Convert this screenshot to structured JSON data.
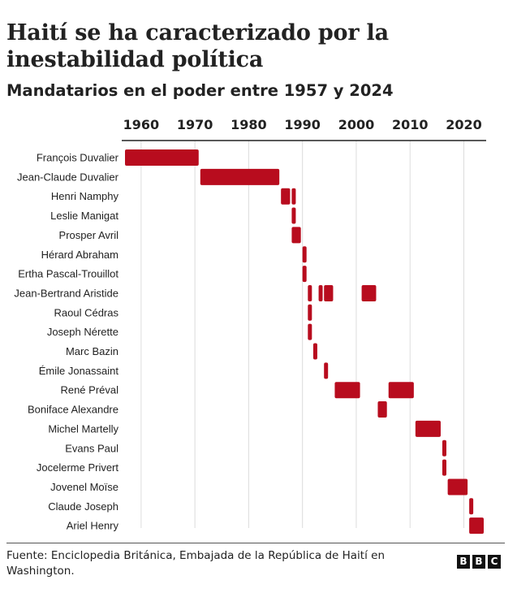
{
  "title": "Haití se ha caracterizado por la inestabilidad política",
  "subtitle": "Mandatarios en el poder entre 1957 y 2024",
  "source": "Fuente: Enciclopedia Británica, Embajada de la República de Haití en Washington.",
  "logo": [
    "B",
    "B",
    "C"
  ],
  "colors": {
    "bar": "#b80c1e",
    "grid": "#dcdcdc",
    "text": "#222222",
    "axis": "#222222"
  },
  "chart_data": {
    "type": "timeline",
    "title": "Haití se ha caracterizado por la inestabilidad política",
    "subtitle": "Mandatarios en el poder entre 1957 y 2024",
    "xlabel": "",
    "ylabel": "",
    "xlim": [
      1957,
      2024
    ],
    "xticks": [
      "1960",
      "1970",
      "1980",
      "1990",
      "2000",
      "2010",
      "2020"
    ],
    "leaders": [
      {
        "name": "François Duvalier",
        "terms": [
          [
            1957,
            1971
          ]
        ]
      },
      {
        "name": "Jean-Claude Duvalier",
        "terms": [
          [
            1971,
            1986
          ]
        ]
      },
      {
        "name": "Henri Namphy",
        "terms": [
          [
            1986,
            1988
          ],
          [
            1988,
            1988.8
          ]
        ]
      },
      {
        "name": "Leslie Manigat",
        "terms": [
          [
            1988,
            1988.6
          ]
        ]
      },
      {
        "name": "Prosper Avril",
        "terms": [
          [
            1988,
            1990
          ]
        ]
      },
      {
        "name": "Hérard Abraham",
        "terms": [
          [
            1990,
            1990.5
          ]
        ]
      },
      {
        "name": "Ertha Pascal-Trouillot",
        "terms": [
          [
            1990,
            1991
          ]
        ]
      },
      {
        "name": "Jean-Bertrand Aristide",
        "terms": [
          [
            1991,
            1991.8
          ],
          [
            1993,
            1994
          ],
          [
            1994,
            1996
          ],
          [
            2001,
            2004
          ]
        ]
      },
      {
        "name": "Raoul Cédras",
        "terms": [
          [
            1991,
            1991.9
          ]
        ]
      },
      {
        "name": "Joseph Nérette",
        "terms": [
          [
            1991,
            1992
          ]
        ]
      },
      {
        "name": "Marc Bazin",
        "terms": [
          [
            1992,
            1993
          ]
        ]
      },
      {
        "name": "Émile Jonassaint",
        "terms": [
          [
            1994,
            1994.9
          ]
        ]
      },
      {
        "name": "René Préval",
        "terms": [
          [
            1996,
            2001
          ],
          [
            2006,
            2011
          ]
        ]
      },
      {
        "name": "Boniface Alexandre",
        "terms": [
          [
            2004,
            2006
          ]
        ]
      },
      {
        "name": "Michel Martelly",
        "terms": [
          [
            2011,
            2016
          ]
        ]
      },
      {
        "name": "Evans Paul",
        "terms": [
          [
            2016,
            2017
          ]
        ]
      },
      {
        "name": "Jocelerme Privert",
        "terms": [
          [
            2016,
            2017
          ]
        ]
      },
      {
        "name": "Jovenel Moïse",
        "terms": [
          [
            2017,
            2021
          ]
        ]
      },
      {
        "name": "Claude Joseph",
        "terms": [
          [
            2021,
            2021.8
          ]
        ]
      },
      {
        "name": "Ariel Henry",
        "terms": [
          [
            2021,
            2024
          ]
        ]
      }
    ]
  }
}
